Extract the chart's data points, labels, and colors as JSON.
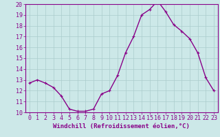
{
  "x": [
    0,
    1,
    2,
    3,
    4,
    5,
    6,
    7,
    8,
    9,
    10,
    11,
    12,
    13,
    14,
    15,
    16,
    17,
    18,
    19,
    20,
    21,
    22,
    23
  ],
  "y": [
    12.7,
    13.0,
    12.7,
    12.3,
    11.5,
    10.3,
    10.1,
    10.1,
    10.3,
    11.7,
    12.0,
    13.4,
    15.5,
    17.0,
    19.0,
    19.5,
    20.3,
    19.3,
    18.1,
    17.5,
    16.8,
    15.5,
    13.2,
    12.0
  ],
  "line_color": "#880088",
  "marker": "+",
  "marker_size": 3,
  "marker_lw": 0.8,
  "bg_color": "#cce8e8",
  "grid_color": "#aacccc",
  "xlabel": "Windchill (Refroidissement éolien,°C)",
  "xlabel_color": "#880088",
  "ylim": [
    10,
    20
  ],
  "xlim": [
    -0.5,
    23.5
  ],
  "yticks": [
    10,
    11,
    12,
    13,
    14,
    15,
    16,
    17,
    18,
    19,
    20
  ],
  "xticks": [
    0,
    1,
    2,
    3,
    4,
    5,
    6,
    7,
    8,
    9,
    10,
    11,
    12,
    13,
    14,
    15,
    16,
    17,
    18,
    19,
    20,
    21,
    22,
    23
  ],
  "tick_color": "#880088",
  "spine_color": "#880088",
  "font_size_ticks": 6,
  "font_size_xlabel": 6.5,
  "linewidth": 1.0
}
